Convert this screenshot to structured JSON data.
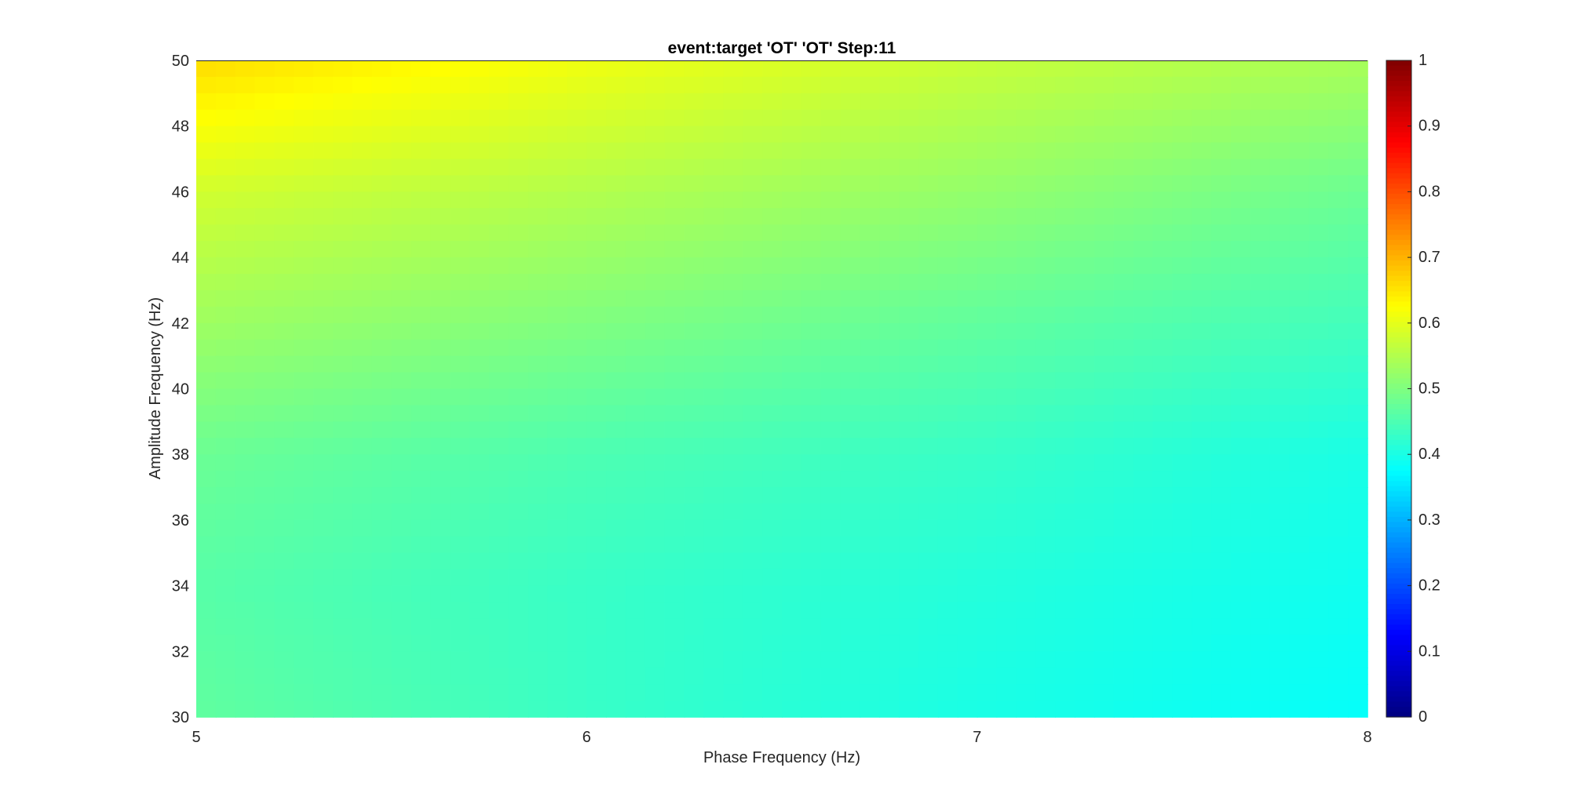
{
  "chart_data": {
    "type": "heatmap",
    "title": "event:target 'OT'  'OT' Step:11",
    "xlabel": "Phase Frequency (Hz)",
    "ylabel": "Amplitude Frequency (Hz)",
    "xlim": [
      5,
      8
    ],
    "ylim": [
      30,
      50
    ],
    "xticks": [
      "5",
      "6",
      "7",
      "8"
    ],
    "yticks": [
      "30",
      "32",
      "34",
      "36",
      "38",
      "40",
      "42",
      "44",
      "46",
      "48",
      "50"
    ],
    "x": [
      5,
      6,
      7,
      8
    ],
    "y": [
      30,
      34,
      38,
      42,
      46,
      50
    ],
    "z": [
      [
        0.47,
        0.43,
        0.4,
        0.38
      ],
      [
        0.46,
        0.43,
        0.41,
        0.39
      ],
      [
        0.48,
        0.45,
        0.43,
        0.4
      ],
      [
        0.53,
        0.5,
        0.47,
        0.44
      ],
      [
        0.58,
        0.55,
        0.52,
        0.48
      ],
      [
        0.66,
        0.61,
        0.57,
        0.54
      ]
    ],
    "colormap": "jet",
    "clim": [
      0,
      1
    ],
    "colorbar": {
      "ticks": [
        "0",
        "0.1",
        "0.2",
        "0.3",
        "0.4",
        "0.5",
        "0.6",
        "0.7",
        "0.8",
        "0.9",
        "1"
      ],
      "placement": "right"
    },
    "grid": false
  }
}
